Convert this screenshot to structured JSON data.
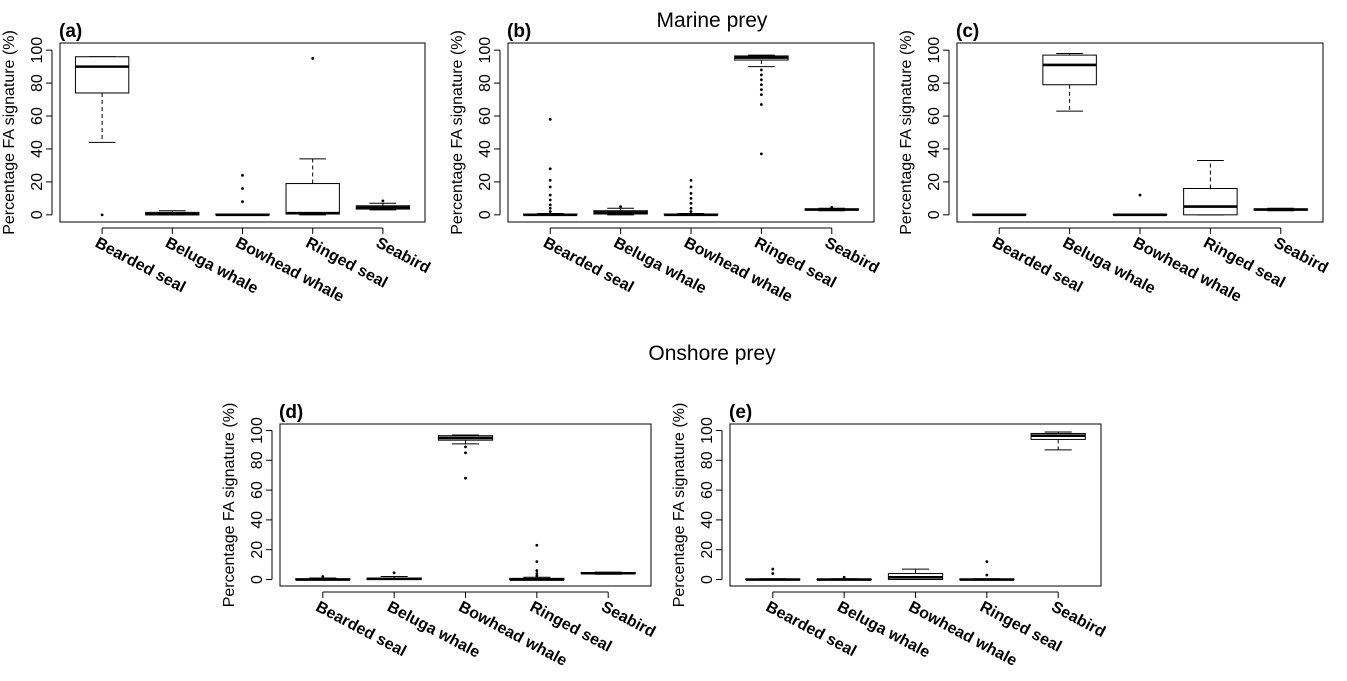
{
  "sections": {
    "marine": "Marine prey",
    "onshore": "Onshore prey"
  },
  "chart_data": [
    {
      "panel": "(a)",
      "type": "boxplot",
      "ylabel": "Percentage FA signature (%)",
      "ylim": [
        0,
        100
      ],
      "yticks": [
        0,
        20,
        40,
        60,
        80,
        100
      ],
      "categories": [
        "Bearded seal",
        "Beluga whale",
        "Bowhead whale",
        "Ringed seal",
        "Seabird"
      ],
      "boxes": [
        {
          "min": 44,
          "q1": 74,
          "median": 90,
          "q3": 96,
          "max": 96,
          "outliers": [
            0
          ]
        },
        {
          "min": 0,
          "q1": 0,
          "median": 0.5,
          "q3": 1.5,
          "max": 2.5,
          "outliers": []
        },
        {
          "min": 0,
          "q1": 0,
          "median": 0,
          "q3": 0.5,
          "max": 0.5,
          "outliers": [
            8,
            16,
            24
          ]
        },
        {
          "min": 0,
          "q1": 0.5,
          "median": 1,
          "q3": 19,
          "max": 34,
          "outliers": [
            95
          ]
        },
        {
          "min": 3,
          "q1": 3.5,
          "median": 4.5,
          "q3": 5.5,
          "max": 7,
          "outliers": [
            8.5
          ]
        }
      ]
    },
    {
      "panel": "(b)",
      "type": "boxplot",
      "ylabel": "Percentage FA signature (%)",
      "ylim": [
        0,
        100
      ],
      "yticks": [
        0,
        20,
        40,
        60,
        80,
        100
      ],
      "categories": [
        "Bearded seal",
        "Beluga whale",
        "Bowhead whale",
        "Ringed seal",
        "Seabird"
      ],
      "boxes": [
        {
          "min": 0,
          "q1": 0,
          "median": 0,
          "q3": 0.5,
          "max": 0.8,
          "outliers": [
            2,
            4,
            6,
            9,
            12,
            17,
            21,
            28,
            58
          ]
        },
        {
          "min": 0,
          "q1": 0.5,
          "median": 1.5,
          "q3": 2.5,
          "max": 4,
          "outliers": [
            5
          ]
        },
        {
          "min": 0,
          "q1": 0,
          "median": 0,
          "q3": 0.5,
          "max": 0.8,
          "outliers": [
            2,
            4,
            7,
            10,
            13,
            17,
            21
          ]
        },
        {
          "min": 90,
          "q1": 94,
          "median": 95.5,
          "q3": 96.5,
          "max": 97,
          "outliers": [
            88,
            85,
            82,
            79,
            76,
            73,
            67,
            37
          ]
        },
        {
          "min": 2.5,
          "q1": 3,
          "median": 3.2,
          "q3": 3.6,
          "max": 4,
          "outliers": [
            4.5
          ]
        }
      ]
    },
    {
      "panel": "(c)",
      "type": "boxplot",
      "ylabel": "Percentage FA signature (%)",
      "ylim": [
        0,
        100
      ],
      "yticks": [
        0,
        20,
        40,
        60,
        80,
        100
      ],
      "categories": [
        "Bearded seal",
        "Beluga whale",
        "Bowhead whale",
        "Ringed seal",
        "Seabird"
      ],
      "boxes": [
        {
          "min": 0,
          "q1": 0,
          "median": 0,
          "q3": 0.3,
          "max": 0.4,
          "outliers": []
        },
        {
          "min": 63,
          "q1": 79,
          "median": 91,
          "q3": 97,
          "max": 98,
          "outliers": []
        },
        {
          "min": 0,
          "q1": 0,
          "median": 0,
          "q3": 0.3,
          "max": 0.4,
          "outliers": [
            12
          ]
        },
        {
          "min": 0,
          "q1": 0,
          "median": 5,
          "q3": 16,
          "max": 33,
          "outliers": []
        },
        {
          "min": 2.5,
          "q1": 3,
          "median": 3.2,
          "q3": 3.6,
          "max": 4,
          "outliers": []
        }
      ]
    },
    {
      "panel": "(d)",
      "type": "boxplot",
      "ylabel": "Percentage FA signature (%)",
      "ylim": [
        0,
        100
      ],
      "yticks": [
        0,
        20,
        40,
        60,
        80,
        100
      ],
      "categories": [
        "Bearded seal",
        "Beluga whale",
        "Bowhead whale",
        "Ringed seal",
        "Seabird"
      ],
      "boxes": [
        {
          "min": 0,
          "q1": 0,
          "median": 0,
          "q3": 0.5,
          "max": 1,
          "outliers": [
            2
          ]
        },
        {
          "min": 0,
          "q1": 0,
          "median": 0.5,
          "q3": 1,
          "max": 2,
          "outliers": [
            4.5
          ]
        },
        {
          "min": 91,
          "q1": 93.5,
          "median": 95,
          "q3": 96.5,
          "max": 97,
          "outliers": [
            89,
            85,
            68
          ]
        },
        {
          "min": 0,
          "q1": 0,
          "median": 0,
          "q3": 0.8,
          "max": 1.5,
          "outliers": [
            2.5,
            4,
            6,
            12,
            23
          ]
        },
        {
          "min": 3.5,
          "q1": 4,
          "median": 4.2,
          "q3": 4.6,
          "max": 5,
          "outliers": []
        }
      ]
    },
    {
      "panel": "(e)",
      "type": "boxplot",
      "ylabel": "Percentage FA signature (%)",
      "ylim": [
        0,
        100
      ],
      "yticks": [
        0,
        20,
        40,
        60,
        80,
        100
      ],
      "categories": [
        "Bearded seal",
        "Beluga whale",
        "Bowhead whale",
        "Ringed seal",
        "Seabird"
      ],
      "boxes": [
        {
          "min": 0,
          "q1": 0,
          "median": 0,
          "q3": 0.3,
          "max": 0.5,
          "outliers": [
            4,
            7
          ]
        },
        {
          "min": 0,
          "q1": 0,
          "median": 0,
          "q3": 0.3,
          "max": 0.5,
          "outliers": [
            1.5
          ]
        },
        {
          "min": 0,
          "q1": 0,
          "median": 1.5,
          "q3": 4,
          "max": 7,
          "outliers": []
        },
        {
          "min": 0,
          "q1": 0,
          "median": 0,
          "q3": 0.3,
          "max": 0.5,
          "outliers": [
            3,
            12
          ]
        },
        {
          "min": 87,
          "q1": 94,
          "median": 96.5,
          "q3": 98,
          "max": 99,
          "outliers": []
        }
      ]
    }
  ]
}
